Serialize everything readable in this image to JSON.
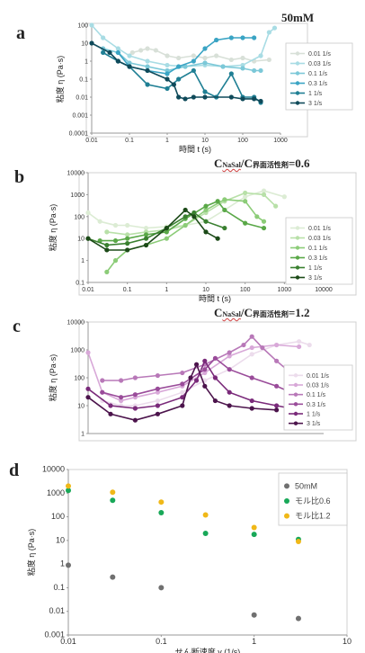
{
  "chart_data": [
    {
      "panel": "a",
      "type": "line",
      "note": "50mM",
      "xlabel": "時間 t (s)",
      "ylabel": "粘度 η (Pa·s)",
      "xscale": "log",
      "yscale": "log",
      "xlim": [
        0.01,
        1000
      ],
      "ylim": [
        0.0001,
        100
      ],
      "xticks": [
        "0.01",
        "0.1",
        "1",
        "10",
        "100",
        "1000"
      ],
      "yticks": [
        "0.0001",
        "0.001",
        "0.01",
        "0.1",
        "1",
        "10",
        "100"
      ],
      "legend_position": "right",
      "series": [
        {
          "name": "0.01 1/s",
          "color": "#d8e0d8",
          "points": [
            [
              0.12,
              3
            ],
            [
              0.2,
              4
            ],
            [
              0.3,
              5
            ],
            [
              0.5,
              4
            ],
            [
              1,
              2
            ],
            [
              2,
              1.5
            ],
            [
              5,
              2
            ],
            [
              10,
              1.5
            ],
            [
              20,
              2
            ],
            [
              50,
              1.2
            ],
            [
              100,
              1.5
            ],
            [
              200,
              1
            ],
            [
              500,
              1.2
            ]
          ]
        },
        {
          "name": "0.03 1/s",
          "color": "#a8dce4",
          "points": [
            [
              0.01,
              100
            ],
            [
              0.02,
              20
            ],
            [
              0.05,
              5
            ],
            [
              0.1,
              2
            ],
            [
              0.3,
              1
            ],
            [
              1,
              0.6
            ],
            [
              3,
              0.5
            ],
            [
              10,
              0.6
            ],
            [
              30,
              0.5
            ],
            [
              100,
              0.6
            ],
            [
              300,
              2
            ],
            [
              500,
              40
            ],
            [
              700,
              70
            ]
          ]
        },
        {
          "name": "0.1 1/s",
          "color": "#7cc8d8",
          "points": [
            [
              0.02,
              5
            ],
            [
              0.05,
              3
            ],
            [
              0.1,
              0.8
            ],
            [
              0.3,
              0.5
            ],
            [
              1,
              0.3
            ],
            [
              3,
              0.5
            ],
            [
              10,
              0.8
            ],
            [
              30,
              0.5
            ],
            [
              100,
              0.4
            ],
            [
              200,
              0.3
            ],
            [
              300,
              0.3
            ]
          ]
        },
        {
          "name": "0.3 1/s",
          "color": "#3aa4c4",
          "points": [
            [
              0.05,
              3
            ],
            [
              0.1,
              0.5
            ],
            [
              0.3,
              0.3
            ],
            [
              1,
              0.2
            ],
            [
              2,
              0.5
            ],
            [
              5,
              1
            ],
            [
              10,
              5
            ],
            [
              20,
              15
            ],
            [
              50,
              20
            ],
            [
              100,
              20
            ],
            [
              200,
              20
            ]
          ]
        },
        {
          "name": "1 1/s",
          "color": "#1f7f94",
          "points": [
            [
              0.02,
              3
            ],
            [
              0.05,
              1
            ],
            [
              0.1,
              0.5
            ],
            [
              0.3,
              0.05
            ],
            [
              1,
              0.03
            ],
            [
              2,
              0.1
            ],
            [
              5,
              0.3
            ],
            [
              10,
              0.02
            ],
            [
              20,
              0.01
            ],
            [
              50,
              0.2
            ],
            [
              100,
              0.01
            ],
            [
              200,
              0.01
            ],
            [
              300,
              0.005
            ]
          ]
        },
        {
          "name": "3 1/s",
          "color": "#0f4a5a",
          "points": [
            [
              0.01,
              10
            ],
            [
              0.03,
              3
            ],
            [
              0.05,
              1
            ],
            [
              0.1,
              0.5
            ],
            [
              0.3,
              0.3
            ],
            [
              1,
              0.1
            ],
            [
              1.5,
              0.05
            ],
            [
              2,
              0.01
            ],
            [
              3,
              0.008
            ],
            [
              5,
              0.01
            ],
            [
              10,
              0.01
            ],
            [
              50,
              0.01
            ],
            [
              100,
              0.008
            ],
            [
              200,
              0.008
            ],
            [
              300,
              0.006
            ]
          ]
        }
      ]
    },
    {
      "panel": "b",
      "type": "line",
      "note_main": "C",
      "note_sub1": "NaSal",
      "note_mid": "/C",
      "note_sub2": "界面活性剤",
      "note_end": "=0.6",
      "xlabel": "時間 t (s)",
      "ylabel": "粘度 η (Pa·s)",
      "xscale": "log",
      "yscale": "log",
      "xlim": [
        0.01,
        10000
      ],
      "ylim": [
        0.1,
        10000
      ],
      "xticks": [
        "0.01",
        "0.1",
        "1",
        "10",
        "100",
        "1000",
        "10000"
      ],
      "yticks": [
        "0.1",
        "1",
        "10",
        "100",
        "1000",
        "10000"
      ],
      "legend_position": "right",
      "series": [
        {
          "name": "0.01 1/s",
          "color": "#dcecd4",
          "points": [
            [
              0.01,
              150
            ],
            [
              0.02,
              60
            ],
            [
              0.05,
              40
            ],
            [
              0.1,
              40
            ],
            [
              0.3,
              30
            ],
            [
              1,
              35
            ],
            [
              3,
              40
            ],
            [
              10,
              60
            ],
            [
              30,
              200
            ],
            [
              100,
              800
            ],
            [
              300,
              1500
            ],
            [
              1000,
              800
            ]
          ]
        },
        {
          "name": "0.03 1/s",
          "color": "#b8e0a8",
          "points": [
            [
              0.03,
              20
            ],
            [
              0.1,
              15
            ],
            [
              0.3,
              20
            ],
            [
              1,
              25
            ],
            [
              3,
              40
            ],
            [
              10,
              150
            ],
            [
              30,
              500
            ],
            [
              100,
              1200
            ],
            [
              300,
              1000
            ],
            [
              600,
              300
            ]
          ]
        },
        {
          "name": "0.1 1/s",
          "color": "#8ccc78",
          "points": [
            [
              0.03,
              0.3
            ],
            [
              0.05,
              1
            ],
            [
              0.1,
              3
            ],
            [
              0.3,
              5
            ],
            [
              1,
              10
            ],
            [
              3,
              40
            ],
            [
              10,
              200
            ],
            [
              30,
              600
            ],
            [
              100,
              500
            ],
            [
              200,
              100
            ],
            [
              300,
              60
            ]
          ]
        },
        {
          "name": "0.3 1/s",
          "color": "#5aa848",
          "points": [
            [
              0.02,
              8
            ],
            [
              0.05,
              8
            ],
            [
              0.1,
              10
            ],
            [
              0.3,
              15
            ],
            [
              1,
              20
            ],
            [
              3,
              80
            ],
            [
              10,
              300
            ],
            [
              20,
              500
            ],
            [
              30,
              200
            ],
            [
              100,
              50
            ],
            [
              300,
              30
            ]
          ]
        },
        {
          "name": "1 1/s",
          "color": "#3a8030",
          "points": [
            [
              0.01,
              10
            ],
            [
              0.03,
              5
            ],
            [
              0.1,
              6
            ],
            [
              0.3,
              10
            ],
            [
              1,
              30
            ],
            [
              3,
              100
            ],
            [
              5,
              150
            ],
            [
              10,
              60
            ],
            [
              30,
              30
            ]
          ]
        },
        {
          "name": "3 1/s",
          "color": "#1c4a18",
          "points": [
            [
              0.01,
              10
            ],
            [
              0.03,
              3
            ],
            [
              0.1,
              3
            ],
            [
              0.3,
              5
            ],
            [
              1,
              30
            ],
            [
              3,
              200
            ],
            [
              5,
              100
            ],
            [
              10,
              20
            ],
            [
              20,
              10
            ]
          ]
        }
      ]
    },
    {
      "panel": "c",
      "type": "line",
      "note_main": "C",
      "note_sub1": "NaSal",
      "note_mid": "/C",
      "note_sub2": "界面活性剤",
      "note_end": "=1.2",
      "xlabel": "",
      "ylabel": "粘度 η (Pa·s)",
      "xscale": "log",
      "yscale": "log",
      "xlim": [
        0.01,
        1000
      ],
      "ylim": [
        1,
        10000
      ],
      "yticks": [
        "1",
        "10",
        "100",
        "1000",
        "10000"
      ],
      "legend_position": "right",
      "series": [
        {
          "name": "0.01 1/s",
          "color": "#ecdcec",
          "points": [
            [
              0.02,
              15
            ],
            [
              0.05,
              10
            ],
            [
              0.1,
              10
            ],
            [
              0.3,
              15
            ],
            [
              1,
              30
            ],
            [
              3,
              80
            ],
            [
              10,
              200
            ],
            [
              30,
              700
            ],
            [
              100,
              1500
            ],
            [
              300,
              2000
            ],
            [
              500,
              1500
            ]
          ]
        },
        {
          "name": "0.03 1/s",
          "color": "#d8a8d8",
          "points": [
            [
              0.01,
              800
            ],
            [
              0.02,
              30
            ],
            [
              0.05,
              15
            ],
            [
              0.1,
              20
            ],
            [
              0.3,
              30
            ],
            [
              1,
              50
            ],
            [
              3,
              150
            ],
            [
              10,
              600
            ],
            [
              30,
              1200
            ],
            [
              100,
              1500
            ],
            [
              300,
              1300
            ]
          ]
        },
        {
          "name": "0.1 1/s",
          "color": "#b878b8",
          "points": [
            [
              0.02,
              80
            ],
            [
              0.05,
              80
            ],
            [
              0.1,
              100
            ],
            [
              0.3,
              120
            ],
            [
              1,
              150
            ],
            [
              3,
              300
            ],
            [
              10,
              800
            ],
            [
              20,
              1500
            ],
            [
              30,
              3000
            ],
            [
              50,
              1200
            ],
            [
              100,
              400
            ],
            [
              200,
              150
            ]
          ]
        },
        {
          "name": "0.3 1/s",
          "color": "#9a4c9a",
          "points": [
            [
              0.02,
              30
            ],
            [
              0.05,
              20
            ],
            [
              0.1,
              25
            ],
            [
              0.3,
              40
            ],
            [
              1,
              60
            ],
            [
              3,
              200
            ],
            [
              5,
              500
            ],
            [
              10,
              200
            ],
            [
              30,
              100
            ],
            [
              100,
              50
            ],
            [
              200,
              30
            ]
          ]
        },
        {
          "name": "1 1/s",
          "color": "#7a2a7a",
          "points": [
            [
              0.01,
              40
            ],
            [
              0.03,
              10
            ],
            [
              0.1,
              8
            ],
            [
              0.3,
              10
            ],
            [
              1,
              20
            ],
            [
              2,
              80
            ],
            [
              3,
              400
            ],
            [
              5,
              100
            ],
            [
              10,
              30
            ],
            [
              30,
              15
            ],
            [
              100,
              10
            ],
            [
              200,
              8
            ]
          ]
        },
        {
          "name": "3 1/s",
          "color": "#4c144c",
          "points": [
            [
              0.01,
              20
            ],
            [
              0.03,
              5
            ],
            [
              0.1,
              3
            ],
            [
              0.3,
              5
            ],
            [
              1,
              10
            ],
            [
              1.5,
              100
            ],
            [
              2,
              300
            ],
            [
              3,
              50
            ],
            [
              5,
              15
            ],
            [
              10,
              10
            ],
            [
              30,
              8
            ],
            [
              100,
              7
            ]
          ]
        }
      ]
    },
    {
      "panel": "d",
      "type": "scatter",
      "xlabel": "せん断速度 γ (1/s)",
      "ylabel": "粘度 η (Pa·s)",
      "xscale": "log",
      "yscale": "log",
      "xlim": [
        0.01,
        10
      ],
      "ylim": [
        0.001,
        10000
      ],
      "xticks": [
        "0.01",
        "0.1",
        "1",
        "10"
      ],
      "yticks": [
        "0.001",
        "0.01",
        "0.1",
        "1",
        "10",
        "100",
        "1000",
        "10000"
      ],
      "legend_position": "top-right",
      "series": [
        {
          "name": "50mM",
          "color": "#707070",
          "points": [
            [
              0.01,
              0.9
            ],
            [
              0.03,
              0.28
            ],
            [
              0.1,
              0.1
            ],
            [
              1,
              0.007
            ],
            [
              3,
              0.005
            ]
          ]
        },
        {
          "name": "モル比0.6",
          "color": "#18a858",
          "points": [
            [
              0.01,
              1300
            ],
            [
              0.03,
              500
            ],
            [
              0.1,
              150
            ],
            [
              0.3,
              20
            ],
            [
              1,
              18
            ],
            [
              3,
              11
            ]
          ]
        },
        {
          "name": "モル比1.2",
          "color": "#f0b818",
          "points": [
            [
              0.01,
              2000
            ],
            [
              0.03,
              1100
            ],
            [
              0.1,
              420
            ],
            [
              0.3,
              120
            ],
            [
              1,
              35
            ],
            [
              3,
              9
            ]
          ]
        }
      ]
    }
  ]
}
